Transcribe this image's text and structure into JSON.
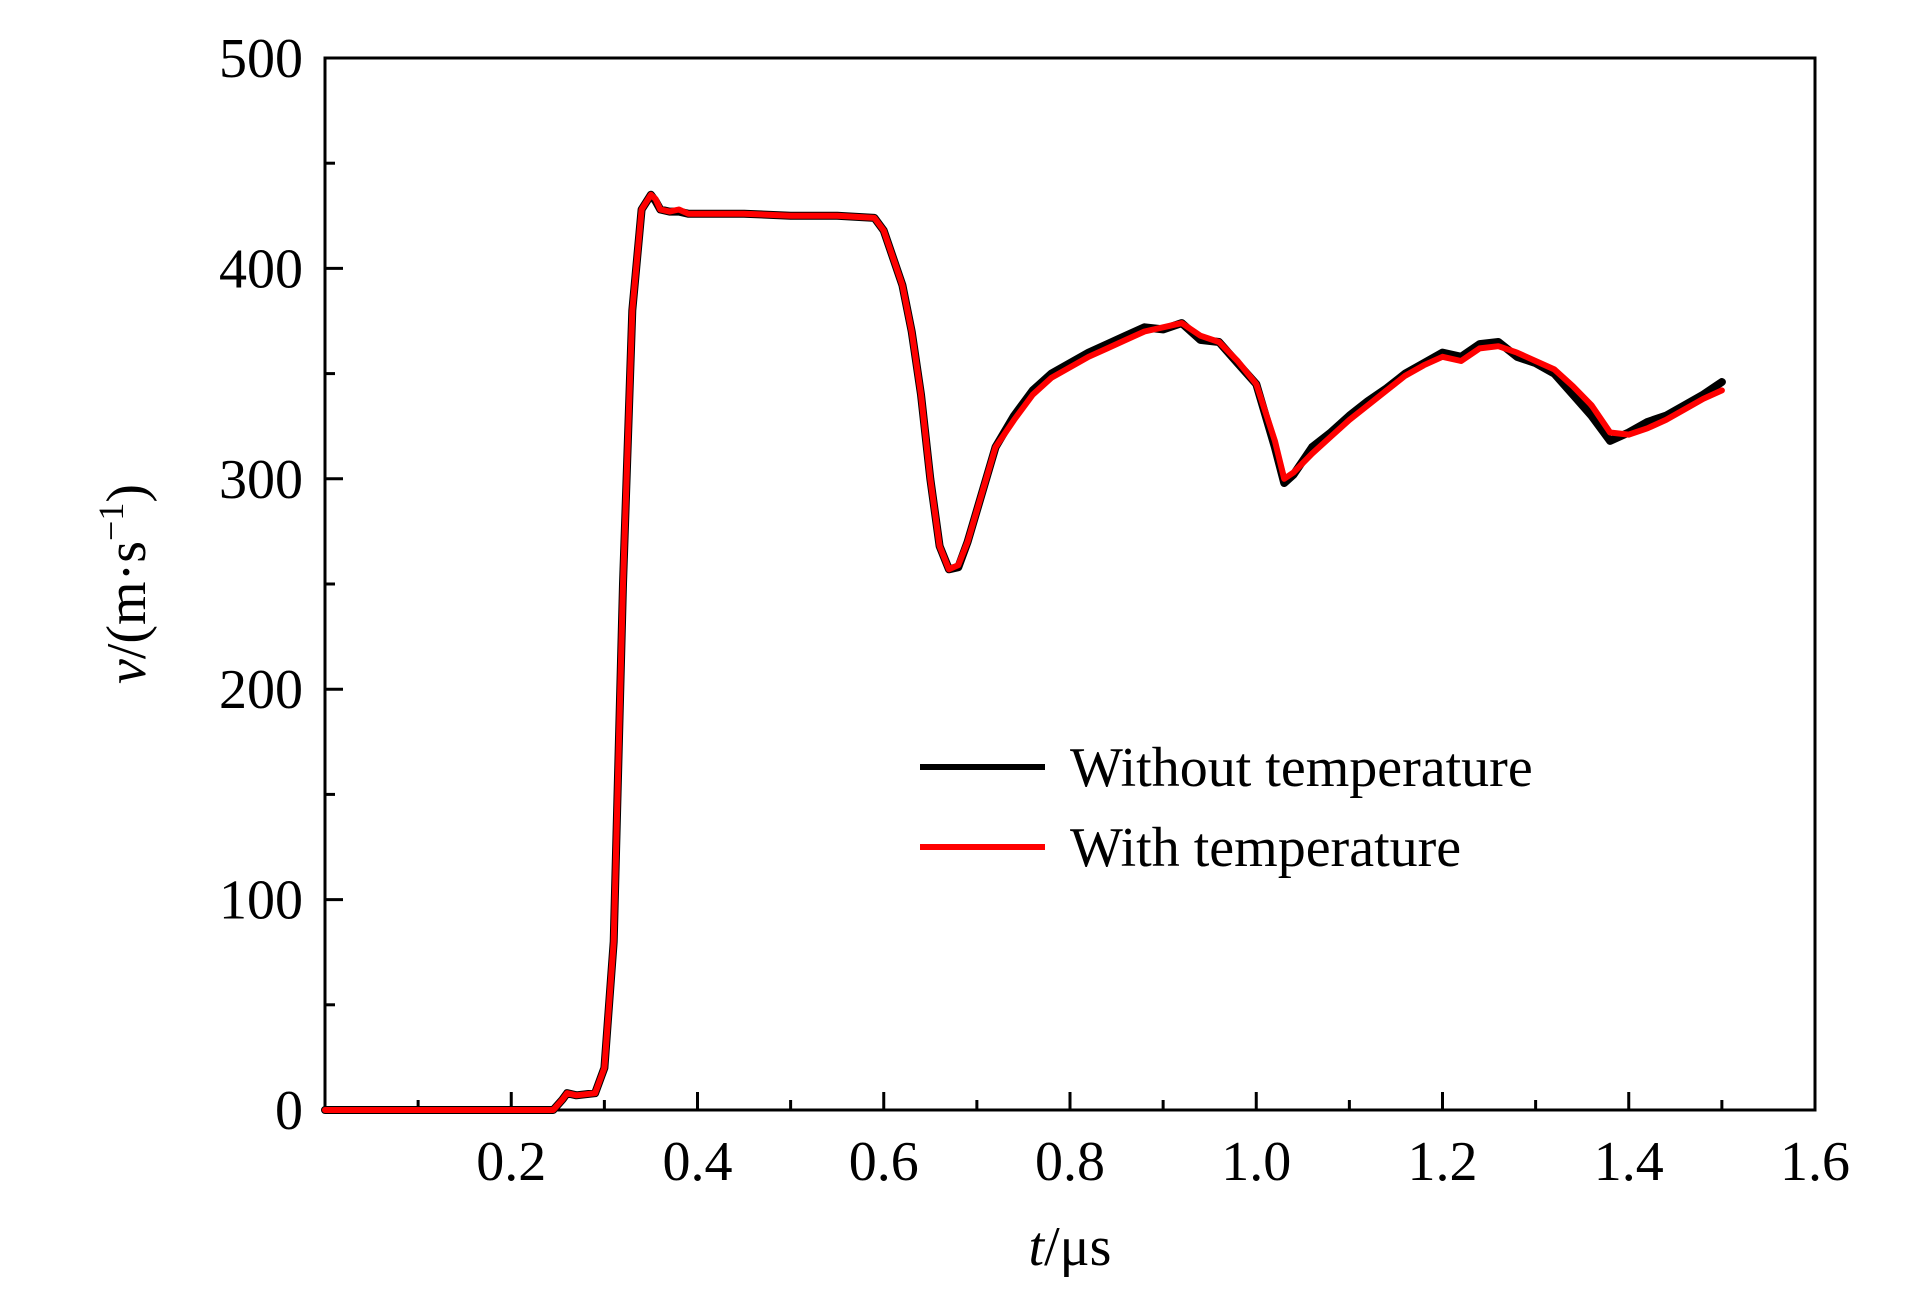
{
  "chart_data": {
    "type": "line",
    "title": "",
    "xlabel": {
      "var": "t",
      "unit": "/μs"
    },
    "ylabel": {
      "var": "v",
      "unit_main": "/(m·s",
      "unit_sup": "−1",
      "unit_close": ")"
    },
    "xlim": [
      0,
      1.6
    ],
    "ylim": [
      0,
      500
    ],
    "xticks": [
      0.2,
      0.4,
      0.6,
      0.8,
      1.0,
      1.2,
      1.4,
      1.6
    ],
    "xtick_labels": [
      "0.2",
      "0.4",
      "0.6",
      "0.8",
      "1.0",
      "1.2",
      "1.4",
      "1.6"
    ],
    "yticks": [
      0,
      100,
      200,
      300,
      400,
      500
    ],
    "ytick_labels": [
      "0",
      "100",
      "200",
      "300",
      "400",
      "500"
    ],
    "grid": false,
    "legend_position": "lower-right",
    "series": [
      {
        "name": "Without temperature",
        "color": "#000000",
        "x": [
          0.0,
          0.1,
          0.2,
          0.245,
          0.255,
          0.26,
          0.27,
          0.29,
          0.3,
          0.31,
          0.32,
          0.33,
          0.34,
          0.35,
          0.355,
          0.36,
          0.37,
          0.38,
          0.39,
          0.4,
          0.45,
          0.5,
          0.55,
          0.59,
          0.6,
          0.61,
          0.62,
          0.63,
          0.64,
          0.65,
          0.66,
          0.67,
          0.68,
          0.69,
          0.7,
          0.72,
          0.74,
          0.76,
          0.78,
          0.8,
          0.82,
          0.84,
          0.86,
          0.88,
          0.9,
          0.92,
          0.94,
          0.96,
          0.98,
          1.0,
          1.02,
          1.03,
          1.04,
          1.06,
          1.08,
          1.1,
          1.12,
          1.14,
          1.16,
          1.18,
          1.2,
          1.22,
          1.24,
          1.26,
          1.28,
          1.3,
          1.32,
          1.34,
          1.36,
          1.38,
          1.4,
          1.42,
          1.44,
          1.46,
          1.48,
          1.5
        ],
        "y": [
          0,
          0,
          0,
          0,
          5,
          8,
          7,
          8,
          20,
          80,
          250,
          380,
          428,
          435,
          432,
          428,
          427,
          427,
          426,
          426,
          426,
          425,
          425,
          424,
          418,
          405,
          392,
          370,
          340,
          300,
          268,
          257,
          258,
          270,
          285,
          315,
          330,
          342,
          350,
          355,
          360,
          364,
          368,
          372,
          371,
          374,
          366,
          365,
          355,
          345,
          315,
          298,
          302,
          315,
          322,
          330,
          337,
          343,
          350,
          355,
          360,
          358,
          364,
          365,
          358,
          355,
          350,
          340,
          330,
          318,
          322,
          327,
          330,
          335,
          340,
          346
        ]
      },
      {
        "name": "With temperature",
        "color": "#ff0000",
        "x": [
          0.0,
          0.1,
          0.2,
          0.245,
          0.255,
          0.26,
          0.27,
          0.29,
          0.3,
          0.31,
          0.32,
          0.33,
          0.34,
          0.35,
          0.355,
          0.36,
          0.37,
          0.38,
          0.39,
          0.4,
          0.45,
          0.5,
          0.55,
          0.59,
          0.6,
          0.61,
          0.62,
          0.63,
          0.64,
          0.65,
          0.66,
          0.67,
          0.68,
          0.69,
          0.7,
          0.72,
          0.74,
          0.76,
          0.78,
          0.8,
          0.82,
          0.84,
          0.86,
          0.88,
          0.9,
          0.92,
          0.94,
          0.96,
          0.98,
          1.0,
          1.02,
          1.03,
          1.04,
          1.06,
          1.08,
          1.1,
          1.12,
          1.14,
          1.16,
          1.18,
          1.2,
          1.22,
          1.24,
          1.26,
          1.28,
          1.3,
          1.32,
          1.34,
          1.36,
          1.38,
          1.4,
          1.42,
          1.44,
          1.46,
          1.48,
          1.5
        ],
        "y": [
          0,
          0,
          0,
          0,
          5,
          8,
          7,
          8,
          20,
          80,
          250,
          380,
          428,
          435,
          433,
          428,
          427,
          428,
          426,
          426,
          426,
          425,
          425,
          424,
          418,
          405,
          392,
          370,
          340,
          300,
          268,
          257,
          259,
          270,
          285,
          315,
          328,
          340,
          348,
          353,
          358,
          362,
          366,
          370,
          372,
          374,
          368,
          365,
          356,
          345,
          318,
          300,
          303,
          312,
          320,
          328,
          335,
          342,
          349,
          354,
          358,
          356,
          362,
          363,
          360,
          356,
          352,
          344,
          335,
          322,
          321,
          324,
          328,
          333,
          338,
          342
        ]
      }
    ]
  }
}
